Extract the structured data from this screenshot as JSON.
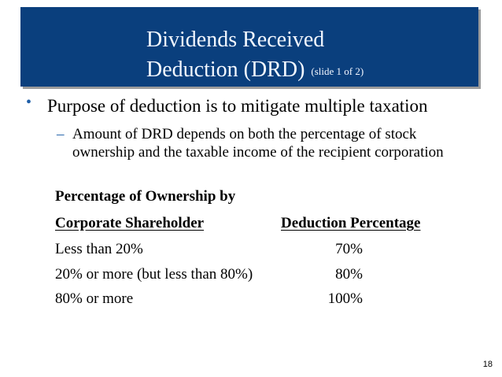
{
  "slide": {
    "title_line1": "Dividends Received",
    "title_line2": "Deduction (DRD)",
    "title_sub": "(slide 1 of 2)",
    "bullet_text": "Purpose of deduction is to mitigate multiple taxation",
    "sub_bullet_text": "Amount of DRD depends on both the percentage of stock ownership and the taxable income of the recipient corporation",
    "page_number": "18"
  },
  "table": {
    "header_line1": "Percentage of Ownership by",
    "header_col1": "Corporate Shareholder",
    "header_col2": "Deduction Percentage",
    "rows": [
      {
        "ownership": "Less than 20%",
        "deduction": "70%"
      },
      {
        "ownership": "20% or more (but less than 80%)",
        "deduction": "80%"
      },
      {
        "ownership": "80% or more",
        "deduction": "100%"
      }
    ]
  },
  "colors": {
    "title_background": "#0a3f7d",
    "title_text": "#f2f7ff",
    "bullet_accent": "#1f5fa8"
  },
  "icons": {
    "bullet": "bullet-dot-icon",
    "sub_bullet": "dash-icon"
  }
}
